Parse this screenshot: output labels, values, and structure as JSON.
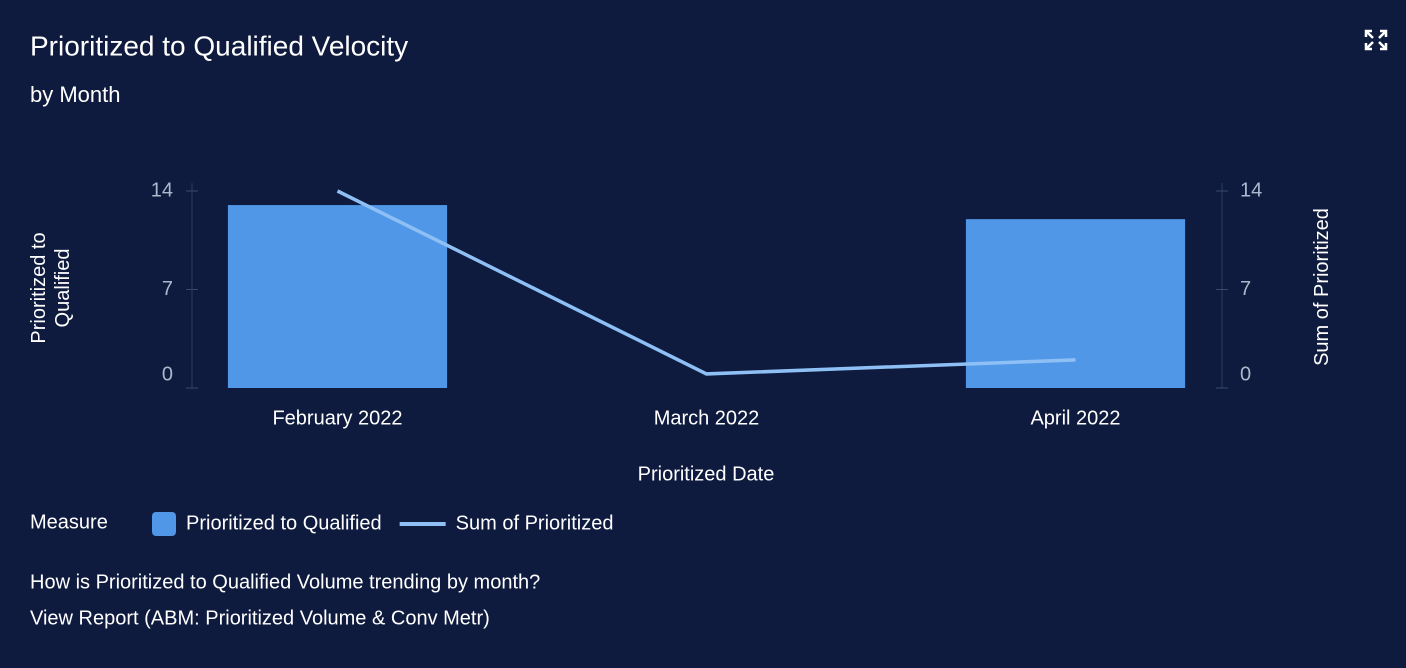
{
  "chart_data": {
    "type": "combo",
    "title": "Prioritized to Qualified Velocity",
    "subtitle": "by Month",
    "x_label": "Prioritized Date",
    "y_label": "Prioritized to Qualified",
    "y2_label": "Sum of Prioritized",
    "legend_title": "Measure",
    "categories": [
      "February 2022",
      "March 2022",
      "April 2022"
    ],
    "series": [
      {
        "name": "Prioritized to Qualified",
        "type": "bar",
        "color": "#5197e8",
        "values": [
          13,
          0,
          12
        ]
      },
      {
        "name": "Sum of Prioritized",
        "type": "line",
        "axis": "y2",
        "color": "#8ec0f5",
        "values": [
          14,
          1,
          2
        ]
      }
    ],
    "ylim": [
      0,
      14
    ],
    "yticks": [
      0,
      7,
      14
    ],
    "y2lim": [
      0,
      14
    ],
    "y2ticks": [
      0,
      7,
      14
    ]
  },
  "footer": {
    "question": "How is Prioritized to Qualified Volume trending by month?",
    "link": "View Report (ABM: Prioritized Volume & Conv Metr)"
  }
}
